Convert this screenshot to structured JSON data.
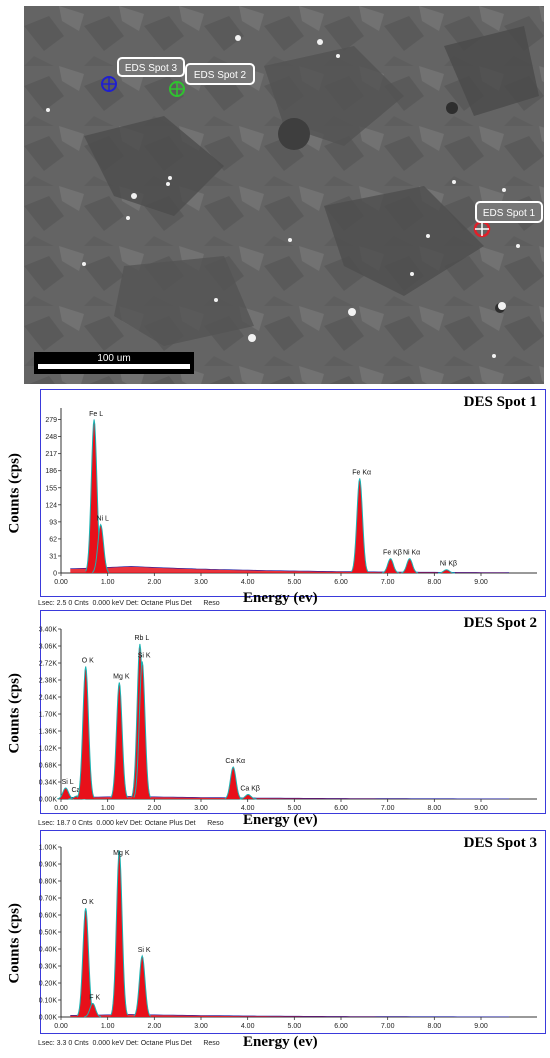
{
  "sem_image": {
    "scale_bar_label": "100 um",
    "spots": [
      {
        "label": "EDS Spot 1",
        "color": "#e0202a"
      },
      {
        "label": "EDS Spot 2",
        "color": "#2ec42e"
      },
      {
        "label": "EDS Spot 3",
        "color": "#1f1fd0"
      }
    ]
  },
  "chart_data": [
    {
      "type": "line",
      "title": "DES Spot 1",
      "xlabel": "Energy (ev)",
      "ylabel": "Counts (cps)",
      "xlim": [
        0,
        10.2
      ],
      "ylim": [
        0,
        300
      ],
      "x_ticks": [
        "0.00",
        "1.00",
        "2.00",
        "3.00",
        "4.00",
        "5.00",
        "6.00",
        "7.00",
        "8.00",
        "9.00"
      ],
      "y_ticks": [
        "0",
        "31",
        "62",
        "93",
        "124",
        "155",
        "186",
        "217",
        "248",
        "279"
      ],
      "fill_color": "#e8101a",
      "peaks": [
        {
          "label": "Fe L",
          "x": 0.71,
          "y": 279
        },
        {
          "label": "Ni L",
          "x": 0.85,
          "y": 88
        },
        {
          "label": "Fe Kα",
          "x": 6.4,
          "y": 172
        },
        {
          "label": "Fe Kβ",
          "x": 7.06,
          "y": 26
        },
        {
          "label": "Ni Kα",
          "x": 7.47,
          "y": 26
        },
        {
          "label": "Ni Kβ",
          "x": 8.26,
          "y": 6
        }
      ],
      "footer": "Lsec: 2.5 0 Cnts  0.000 keV Det: Octane Plus Det      Reso"
    },
    {
      "type": "line",
      "title": "DES Spot 2",
      "xlabel": "Energy (ev)",
      "ylabel": "Counts (cps)",
      "xlim": [
        0,
        10.2
      ],
      "ylim": [
        0,
        3400
      ],
      "x_ticks": [
        "0.00",
        "1.00",
        "2.00",
        "3.00",
        "4.00",
        "5.00",
        "6.00",
        "7.00",
        "8.00",
        "9.00"
      ],
      "y_ticks": [
        "0.00K",
        "0.34K",
        "0.68K",
        "1.02K",
        "1.36K",
        "1.70K",
        "2.04K",
        "2.38K",
        "2.72K",
        "3.06K",
        "3.40K"
      ],
      "fill_color": "#e8101a",
      "peaks": [
        {
          "label": "Si L",
          "x": 0.1,
          "y": 220
        },
        {
          "label": "Ca L",
          "x": 0.34,
          "y": 60
        },
        {
          "label": "O  K",
          "x": 0.53,
          "y": 2650
        },
        {
          "label": "Mg K",
          "x": 1.25,
          "y": 2330
        },
        {
          "label": "Rb L",
          "x": 1.69,
          "y": 3100
        },
        {
          "label": "Si K",
          "x": 1.74,
          "y": 2750
        },
        {
          "label": "Ca Kα",
          "x": 3.69,
          "y": 640
        },
        {
          "label": "Ca Kβ",
          "x": 4.01,
          "y": 90
        }
      ],
      "footer": "Lsec: 18.7 0 Cnts  0.000 keV Det: Octane Plus Det      Reso"
    },
    {
      "type": "line",
      "title": "DES Spot 3",
      "xlabel": "Energy (ev)",
      "ylabel": "Counts (cps)",
      "xlim": [
        0,
        10.2
      ],
      "ylim": [
        0,
        1000
      ],
      "x_ticks": [
        "0.00",
        "1.00",
        "2.00",
        "3.00",
        "4.00",
        "5.00",
        "6.00",
        "7.00",
        "8.00",
        "9.00"
      ],
      "y_ticks": [
        "0.00K",
        "0.10K",
        "0.20K",
        "0.30K",
        "0.40K",
        "0.50K",
        "0.60K",
        "0.70K",
        "0.80K",
        "0.90K",
        "1.00K"
      ],
      "fill_color": "#e8101a",
      "peaks": [
        {
          "label": "O  K",
          "x": 0.53,
          "y": 640
        },
        {
          "label": "F  K",
          "x": 0.68,
          "y": 80
        },
        {
          "label": "Mg K",
          "x": 1.25,
          "y": 980
        },
        {
          "label": "Si K",
          "x": 1.74,
          "y": 360
        }
      ],
      "footer": "Lsec: 3.3 0 Cnts  0.000 keV Det: Octane Plus Det      Reso"
    }
  ]
}
